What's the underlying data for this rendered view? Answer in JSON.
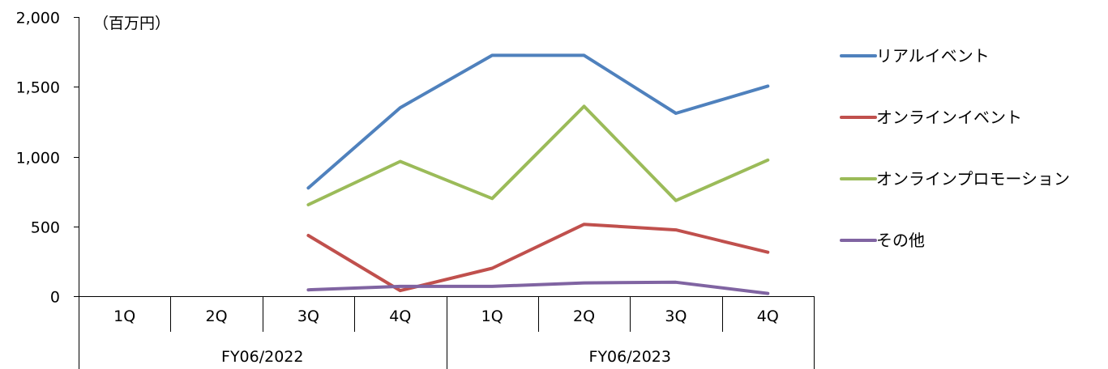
{
  "chart_data": {
    "type": "line",
    "unit_label": "（百万円）",
    "ylim": [
      0,
      2000
    ],
    "y_ticks": [
      "2,000",
      "1,500",
      "1,000",
      "500",
      "0"
    ],
    "y_tick_values": [
      2000,
      1500,
      1000,
      500,
      0
    ],
    "quarters": [
      "1Q",
      "2Q",
      "3Q",
      "4Q",
      "1Q",
      "2Q",
      "3Q",
      "4Q"
    ],
    "fiscal_years": [
      "FY06/2022",
      "FY06/2023"
    ],
    "legend_position": "right",
    "grid": false,
    "series": [
      {
        "name": "リアルイベント",
        "color": "#4f81bd",
        "values": [
          null,
          null,
          775,
          1350,
          1725,
          1725,
          1310,
          1505
        ]
      },
      {
        "name": "オンラインイベント",
        "color": "#c0504d",
        "values": [
          null,
          null,
          435,
          40,
          200,
          515,
          475,
          315
        ]
      },
      {
        "name": "オンラインプロモーション",
        "color": "#9bbb59",
        "values": [
          null,
          null,
          655,
          965,
          700,
          1360,
          685,
          975
        ]
      },
      {
        "name": "その他",
        "color": "#8064a2",
        "values": [
          null,
          null,
          45,
          70,
          70,
          95,
          100,
          20
        ]
      }
    ]
  }
}
